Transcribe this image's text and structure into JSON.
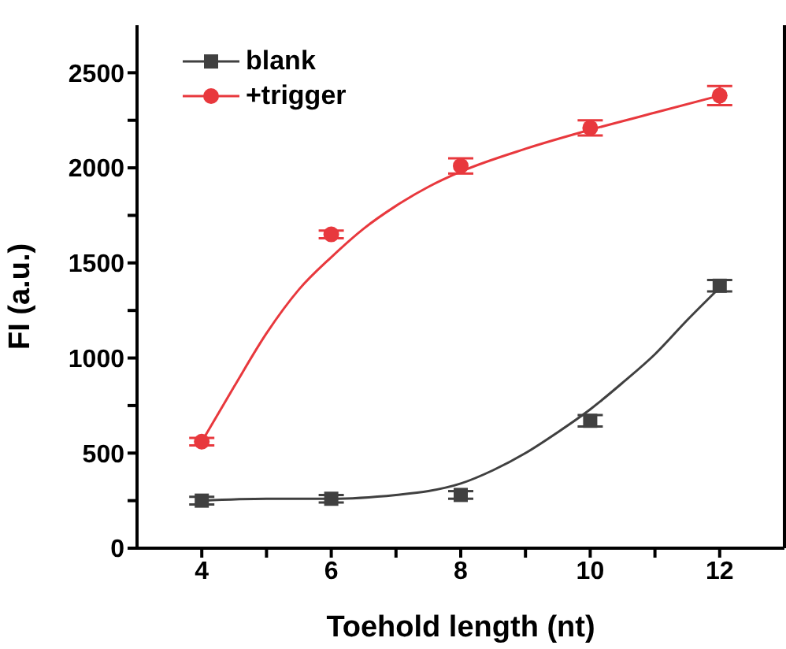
{
  "chart_data": {
    "type": "scatter",
    "xlabel": "Toehold length (nt)",
    "ylabel": "FI (a.u.)",
    "xlim": [
      3,
      13
    ],
    "xticks": [
      4,
      {
        "value": 5,
        "label": null
      },
      6,
      {
        "value": 7,
        "label": null
      },
      8,
      {
        "value": 9,
        "label": null
      },
      10,
      {
        "value": 11,
        "label": null
      },
      12
    ],
    "ylim": [
      0,
      2750
    ],
    "yticks": [
      0,
      {
        "value": 250,
        "label": null
      },
      500,
      {
        "value": 750,
        "label": null
      },
      1000,
      {
        "value": 1250,
        "label": null
      },
      1500,
      {
        "value": 1750,
        "label": null
      },
      2000,
      {
        "value": 2250,
        "label": null
      },
      2500
    ],
    "grid": false,
    "legend": "top left",
    "line_style": "solid",
    "series": [
      {
        "name": "blank",
        "marker": "square",
        "color": "#404040",
        "x": [
          4,
          6,
          8,
          10,
          12
        ],
        "values": [
          250,
          260,
          280,
          670,
          1380
        ],
        "errors": [
          20,
          20,
          20,
          30,
          30
        ]
      },
      {
        "name": "+trigger",
        "marker": "circle",
        "color": "#e8383d",
        "x": [
          4,
          6,
          8,
          10,
          12
        ],
        "values": [
          560,
          1650,
          2010,
          2210,
          2380
        ],
        "errors": [
          20,
          20,
          40,
          40,
          50
        ]
      },
      {
        "type": "line",
        "marker": "none",
        "color": "#404040",
        "x": [
          4,
          5,
          6,
          7,
          7.5,
          8,
          8.5,
          9,
          9.5,
          10,
          10.5,
          11,
          11.5,
          12
        ],
        "values": [
          250,
          260,
          260,
          280,
          300,
          340,
          410,
          500,
          610,
          730,
          870,
          1020,
          1200,
          1370
        ]
      },
      {
        "type": "line",
        "marker": "none",
        "color": "#e8383d",
        "x": [
          4,
          4.5,
          5,
          5.5,
          6,
          6.5,
          7,
          7.5,
          8,
          9,
          10,
          11,
          12
        ],
        "values": [
          560,
          850,
          1130,
          1360,
          1530,
          1680,
          1800,
          1900,
          1980,
          2100,
          2200,
          2290,
          2380
        ]
      }
    ]
  }
}
